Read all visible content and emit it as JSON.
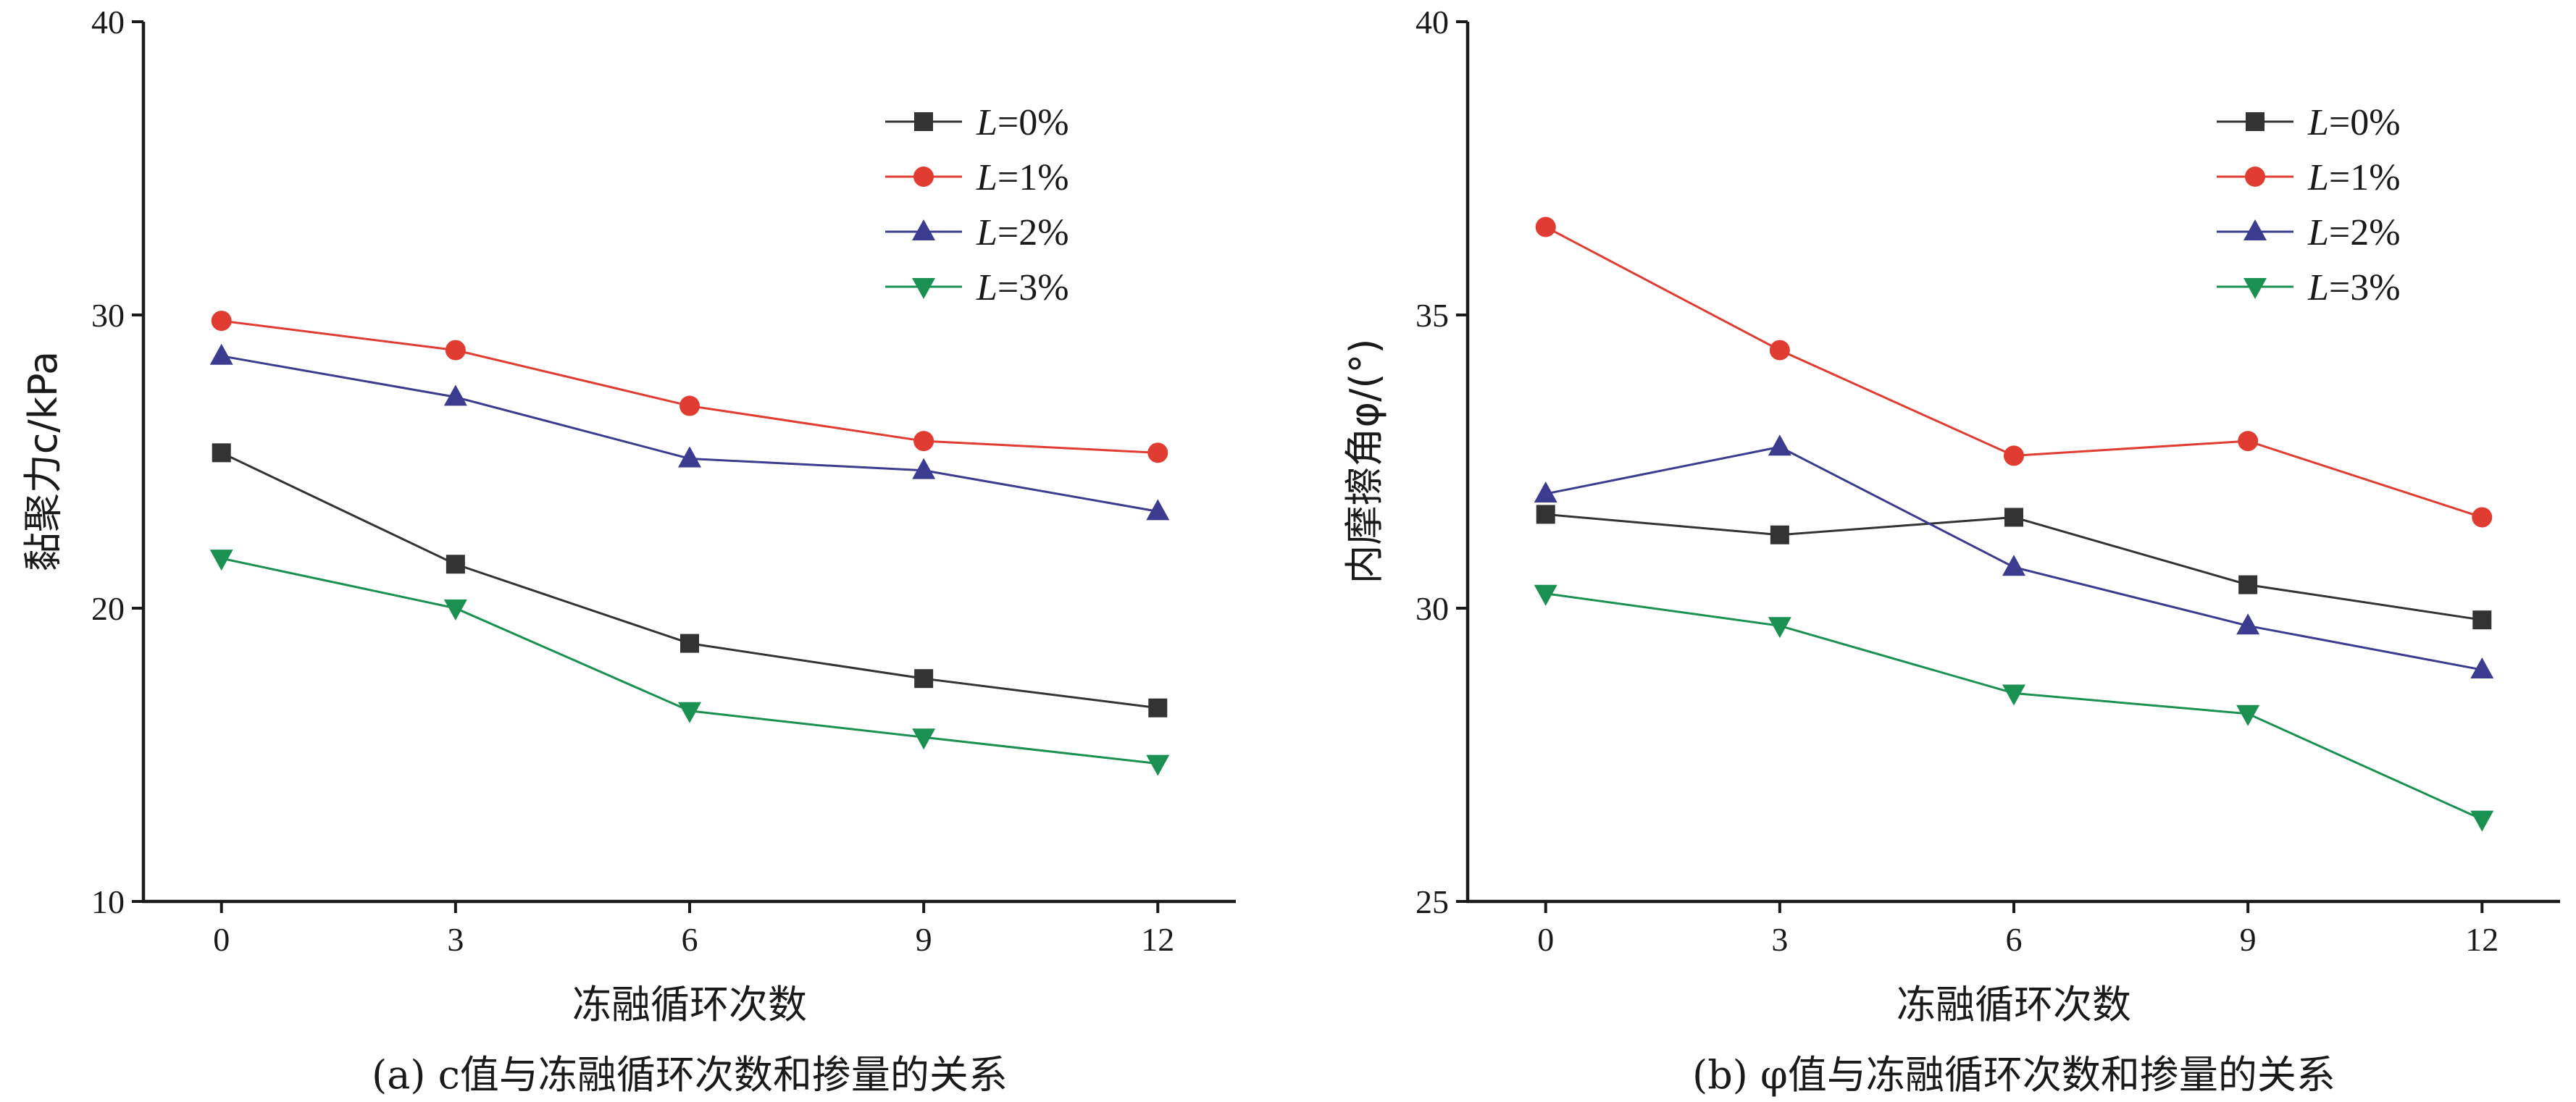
{
  "chart_data": [
    {
      "type": "line",
      "caption": "(a) c值与冻融循环次数和掺量的关系",
      "xlabel": "冻融循环次数",
      "ylabel": "黏聚力c/kPa",
      "x": [
        0,
        3,
        6,
        9,
        12
      ],
      "xticks": [
        "0",
        "3",
        "6",
        "9",
        "12"
      ],
      "xlim": [
        -1,
        13
      ],
      "ylim": [
        10,
        40
      ],
      "yticks": [
        "10",
        "20",
        "30",
        "40"
      ],
      "legend_position": "top-right",
      "grid": false,
      "series": [
        {
          "name": "L=0%",
          "marker": "square",
          "color": "#333333",
          "values": [
            25.3,
            21.5,
            18.8,
            17.6,
            16.6
          ]
        },
        {
          "name": "L=1%",
          "marker": "circle",
          "color": "#e03c31",
          "values": [
            29.8,
            28.8,
            26.9,
            25.7,
            25.3
          ]
        },
        {
          "name": "L=2%",
          "marker": "triangle-up",
          "color": "#3b3b8f",
          "values": [
            28.6,
            27.2,
            25.1,
            24.7,
            23.3
          ]
        },
        {
          "name": "L=3%",
          "marker": "triangle-down",
          "color": "#1a9150",
          "values": [
            21.7,
            20.0,
            16.5,
            15.6,
            14.7
          ]
        }
      ]
    },
    {
      "type": "line",
      "caption": "(b) φ值与冻融循环次数和掺量的关系",
      "xlabel": "冻融循环次数",
      "ylabel": "内摩擦角φ/(°)",
      "x": [
        0,
        3,
        6,
        9,
        12
      ],
      "xticks": [
        "0",
        "3",
        "6",
        "9",
        "12"
      ],
      "xlim": [
        -1,
        13
      ],
      "ylim": [
        25,
        40
      ],
      "yticks": [
        "25",
        "30",
        "35",
        "40"
      ],
      "legend_position": "top-right",
      "grid": false,
      "series": [
        {
          "name": "L=0%",
          "marker": "square",
          "color": "#333333",
          "values": [
            31.6,
            31.25,
            31.55,
            30.4,
            29.8
          ]
        },
        {
          "name": "L=1%",
          "marker": "circle",
          "color": "#e03c31",
          "values": [
            36.5,
            34.4,
            32.6,
            32.85,
            31.55
          ]
        },
        {
          "name": "L=2%",
          "marker": "triangle-up",
          "color": "#3b3b8f",
          "values": [
            31.95,
            32.75,
            30.7,
            29.7,
            28.95
          ]
        },
        {
          "name": "L=3%",
          "marker": "triangle-down",
          "color": "#1a9150",
          "values": [
            30.25,
            29.7,
            28.55,
            28.2,
            26.4
          ]
        }
      ]
    }
  ]
}
